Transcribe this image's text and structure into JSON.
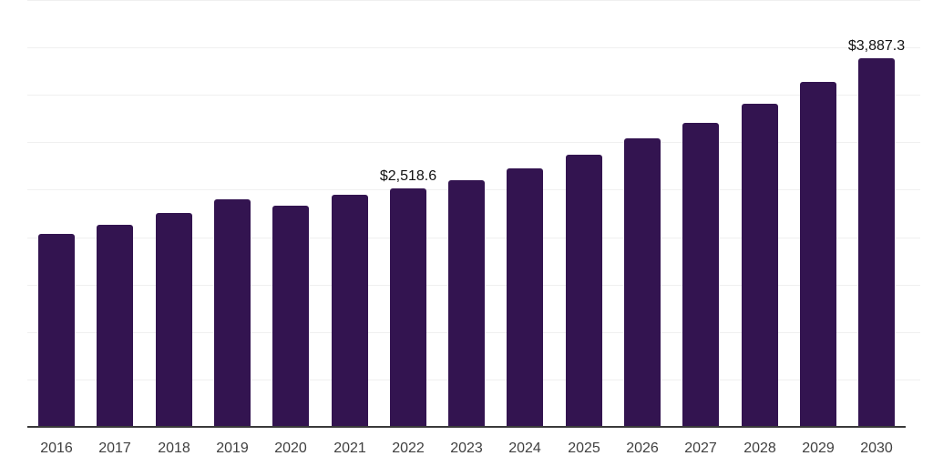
{
  "chart_data": {
    "type": "bar",
    "title": "",
    "xlabel": "",
    "ylabel": "",
    "categories": [
      "2016",
      "2017",
      "2018",
      "2019",
      "2020",
      "2021",
      "2022",
      "2023",
      "2024",
      "2025",
      "2026",
      "2027",
      "2028",
      "2029",
      "2030"
    ],
    "values": [
      2035,
      2130,
      2250,
      2394,
      2336,
      2450,
      2518.6,
      2601,
      2729,
      2873,
      3046,
      3209,
      3410,
      3640,
      3887.3
    ],
    "data_labels": {
      "2022": "$2,518.6",
      "2030": "$3,887.3"
    },
    "ylim": [
      0,
      4500
    ],
    "gridline_step": 500,
    "grid": "horizontal-only",
    "legend": "none",
    "colors": {
      "bar": "#331450",
      "gridline": "#f0f0f0",
      "axis": "#3a3a3a",
      "tick_label": "#404040",
      "value_label": "#111111",
      "background": "#ffffff"
    }
  }
}
